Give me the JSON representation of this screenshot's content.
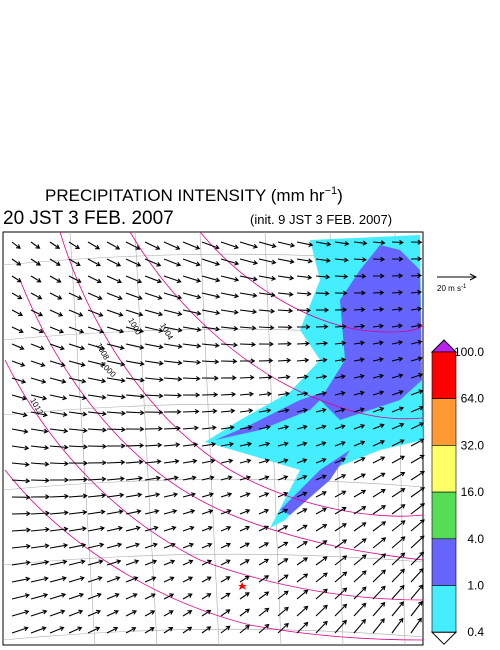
{
  "header": {
    "title": "PRECIPITATION INTENSITY (mm hr",
    "title_exponent": "−1",
    "title_close": ")",
    "valid_time": "20 JST 3 FEB. 2007",
    "init_time": "(init. 9 JST 3 FEB. 2007)"
  },
  "wind_reference": {
    "label": "20 m s",
    "exponent": "-1"
  },
  "legend": {
    "levels": [
      "100.0",
      "64.0",
      "32.0",
      "16.0",
      "4.0",
      "1.0",
      "0.4"
    ],
    "colors": [
      "#ff0000",
      "#ff9933",
      "#ffff66",
      "#55dd55",
      "#6666ff",
      "#44eeff"
    ],
    "over_color": "#bb22ee",
    "under_color": "#ffffff"
  },
  "contour_labels": [
    "1000",
    "1004",
    "1008",
    "1012",
    "1000"
  ]
}
